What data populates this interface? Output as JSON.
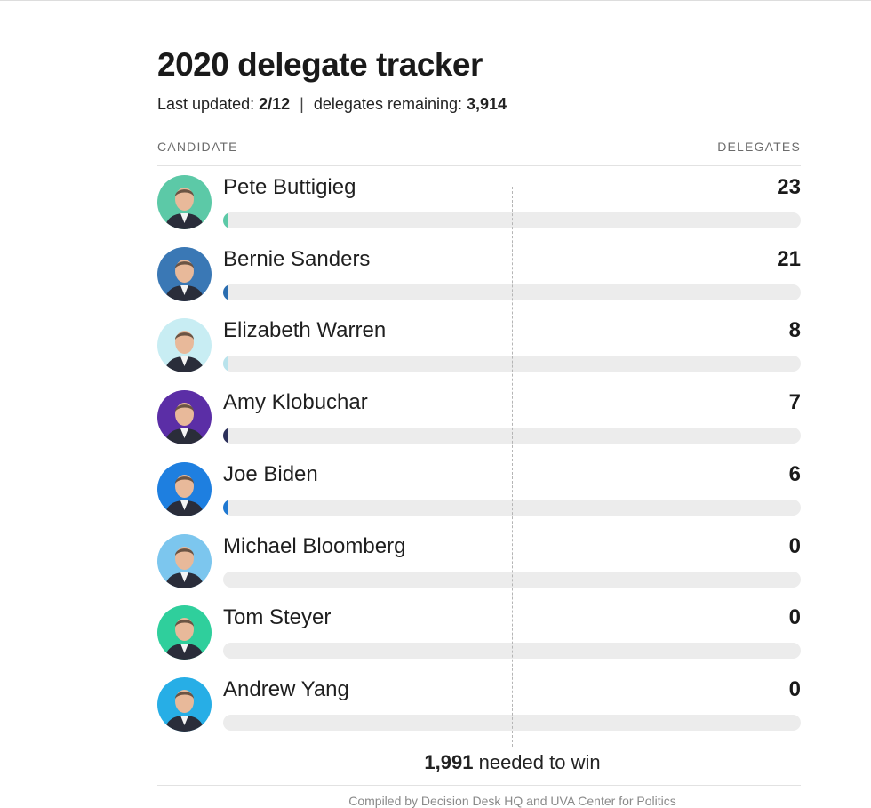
{
  "page": {
    "title": "2020 delegate tracker",
    "updated_label": "Last updated:",
    "updated_value": "2/12",
    "separator": "|",
    "remaining_label": "delegates remaining:",
    "remaining_value": "3,914",
    "col_candidate": "CANDIDATE",
    "col_delegates": "DELEGATES",
    "win_value": "1,991",
    "win_label": "needed to win",
    "source": "Compiled by Decision Desk HQ and UVA Center for Politics"
  },
  "chart_data": {
    "type": "bar",
    "orientation": "horizontal",
    "categories": [
      "Pete Buttigieg",
      "Bernie Sanders",
      "Elizabeth Warren",
      "Amy Klobuchar",
      "Joe Biden",
      "Michael Bloomberg",
      "Tom Steyer",
      "Andrew Yang"
    ],
    "values": [
      23,
      21,
      8,
      7,
      6,
      0,
      0,
      0
    ],
    "xlim": [
      0,
      3979
    ],
    "threshold": 1991,
    "bar_colors": [
      "#5cc9a7",
      "#2a6db0",
      "#b9e3ec",
      "#2b2f5a",
      "#1f78d1",
      "#7fc4e8",
      "#2bbf8f",
      "#29a8e0"
    ],
    "avatar_backgrounds": [
      "#5cc9a7",
      "#3a78b5",
      "#c8edf3",
      "#5b2ea6",
      "#1e7fe0",
      "#7cc6ee",
      "#2fcf9c",
      "#27aee6"
    ]
  }
}
